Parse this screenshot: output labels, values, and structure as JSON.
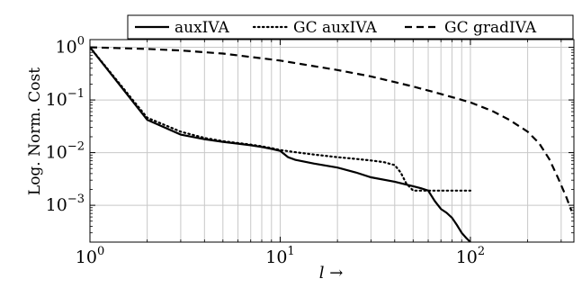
{
  "chart_data": {
    "type": "line",
    "title": "",
    "xlabel": "l →",
    "ylabel": "Log. Norm. Cost",
    "xscale": "log",
    "yscale": "log",
    "xlim": [
      1,
      350
    ],
    "ylim": [
      0.0002,
      1.4
    ],
    "grid": true,
    "legend_position": "top (outside, centered-right)",
    "x_ticks": [
      {
        "value": 1,
        "base": "10",
        "exp": "0"
      },
      {
        "value": 10,
        "base": "10",
        "exp": "1"
      },
      {
        "value": 100,
        "base": "10",
        "exp": "2"
      }
    ],
    "y_ticks": [
      {
        "value": 1,
        "base": "10",
        "exp": "0"
      },
      {
        "value": 0.1,
        "base": "10",
        "exp": "−1"
      },
      {
        "value": 0.01,
        "base": "10",
        "exp": "−2"
      },
      {
        "value": 0.001,
        "base": "10",
        "exp": "−3"
      }
    ],
    "series": [
      {
        "name": "auxIVA",
        "style": "solid",
        "color": "#000000",
        "x": [
          1,
          2,
          3,
          4,
          5,
          6,
          7,
          8,
          9,
          10,
          11,
          12,
          15,
          20,
          25,
          30,
          40,
          50,
          55,
          60,
          65,
          70,
          75,
          80,
          85,
          90,
          95,
          100
        ],
        "y": [
          1.0,
          0.042,
          0.022,
          0.018,
          0.016,
          0.0148,
          0.0138,
          0.0128,
          0.0118,
          0.0108,
          0.0082,
          0.0073,
          0.0062,
          0.0052,
          0.0042,
          0.0034,
          0.0028,
          0.0023,
          0.0021,
          0.0019,
          0.0012,
          0.00085,
          0.00072,
          0.00058,
          0.00042,
          0.0003,
          0.00024,
          0.0002
        ]
      },
      {
        "name": "GC auxIVA",
        "style": "dotted",
        "color": "#000000",
        "x": [
          1,
          2,
          3,
          4,
          5,
          6,
          7,
          8,
          9,
          10,
          12,
          15,
          20,
          25,
          30,
          35,
          40,
          43,
          46,
          50,
          60,
          70,
          80,
          90,
          100
        ],
        "y": [
          1.0,
          0.046,
          0.025,
          0.019,
          0.0165,
          0.0152,
          0.0142,
          0.0132,
          0.0122,
          0.0112,
          0.0102,
          0.0092,
          0.0082,
          0.0076,
          0.0071,
          0.0066,
          0.0058,
          0.0042,
          0.0026,
          0.0019,
          0.0019,
          0.0019,
          0.0019,
          0.0019,
          0.0019
        ]
      },
      {
        "name": "GC gradIVA",
        "style": "dashed",
        "color": "#000000",
        "x": [
          1,
          2,
          3,
          5,
          10,
          20,
          30,
          50,
          70,
          100,
          130,
          160,
          200,
          230,
          260,
          290,
          320,
          340
        ],
        "y": [
          1.0,
          0.93,
          0.87,
          0.76,
          0.56,
          0.37,
          0.28,
          0.18,
          0.13,
          0.09,
          0.062,
          0.042,
          0.025,
          0.015,
          0.0075,
          0.0032,
          0.0014,
          0.00078
        ]
      }
    ]
  }
}
